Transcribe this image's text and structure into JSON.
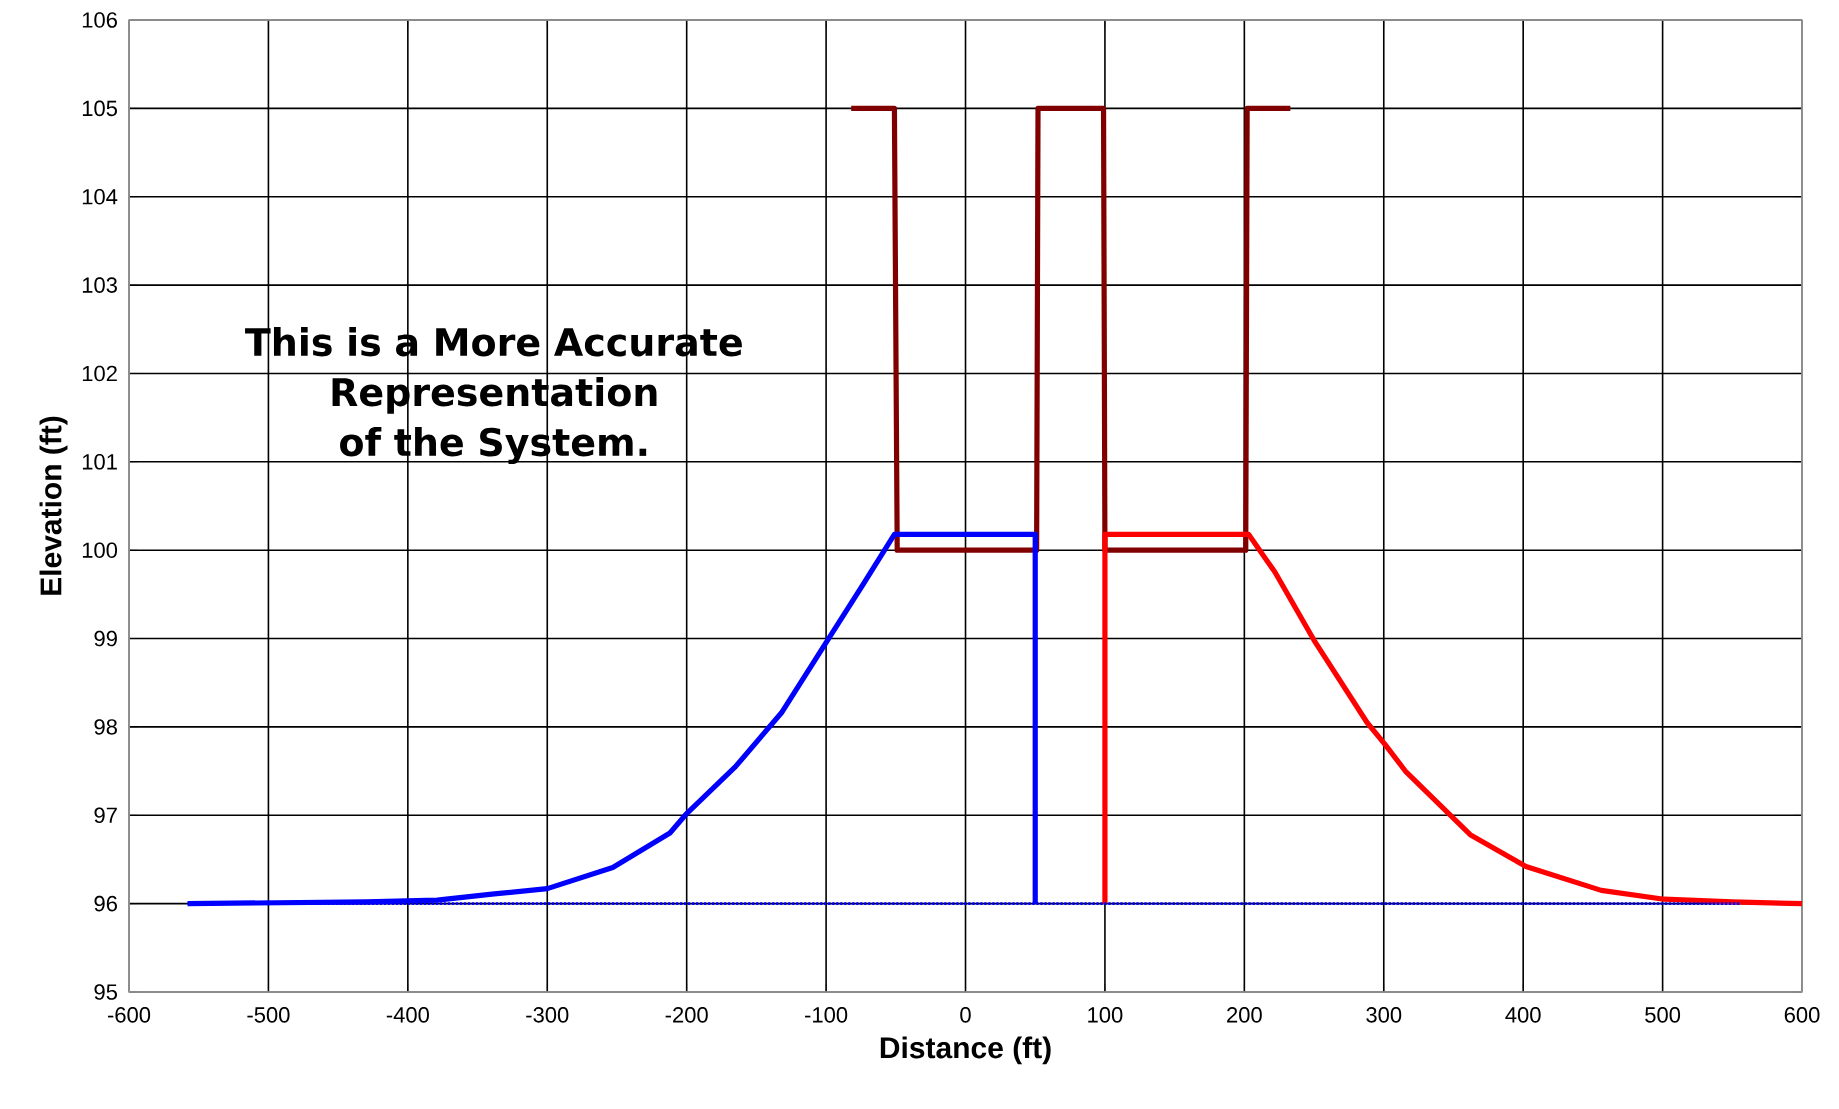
{
  "chart_data": {
    "type": "line",
    "xlabel": "Distance (ft)",
    "ylabel": "Elevation (ft)",
    "xlim": [
      -600,
      600
    ],
    "xticks": [
      -600,
      -500,
      -400,
      -300,
      -200,
      -100,
      0,
      100,
      200,
      300,
      400,
      500,
      600
    ],
    "ylim": [
      95,
      106
    ],
    "yticks": [
      95,
      96,
      97,
      98,
      99,
      100,
      101,
      102,
      103,
      104,
      105,
      106
    ],
    "grid": true,
    "annotations": [
      "This is a More Accurate Representation of the System."
    ],
    "series": [
      {
        "color": "#0000ff",
        "line_style": "dotted",
        "x": [
          -558,
          555
        ],
        "values": [
          96,
          96
        ]
      },
      {
        "color": "#0000ff",
        "line_style": "solid",
        "x": [
          -558,
          -430,
          -379,
          -338,
          -300,
          -253,
          -212,
          -200,
          -165,
          -132,
          -99,
          -74,
          -51,
          50,
          50
        ],
        "values": [
          96,
          96.02,
          96.04,
          96.11,
          96.17,
          96.41,
          96.8,
          97.02,
          97.55,
          98.16,
          98.98,
          99.6,
          100.18,
          100.18,
          96
        ]
      },
      {
        "color": "#ff0000",
        "line_style": "solid",
        "x": [
          100,
          100,
          203,
          222,
          250,
          288,
          301,
          316,
          362,
          402,
          456,
          501,
          550,
          600
        ],
        "values": [
          96,
          100.18,
          100.18,
          99.75,
          98.98,
          98.05,
          97.8,
          97.49,
          96.78,
          96.42,
          96.15,
          96.05,
          96.02,
          96
        ]
      },
      {
        "color": "#800000",
        "line_style": "solid",
        "x": [
          -82,
          -51,
          -49,
          50,
          51,
          52,
          97,
          99,
          100,
          200,
          201,
          202,
          233
        ],
        "values": [
          105,
          105,
          100,
          100,
          100,
          105,
          105,
          105,
          100,
          100,
          100,
          105,
          105
        ]
      }
    ]
  }
}
